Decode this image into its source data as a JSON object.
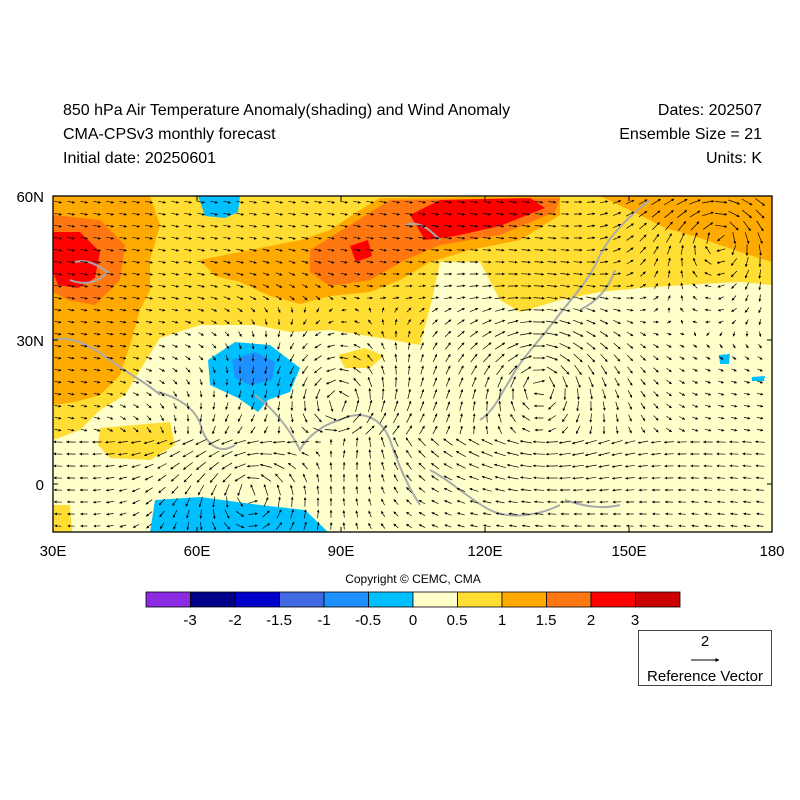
{
  "header": {
    "title": "850 hPa Air Temperature Anomaly(shading) and Wind Anomaly",
    "subtitle": "CMA-CPSv3 monthly forecast",
    "initial_date": "Initial date: 20250601",
    "dates": "Dates: 202507",
    "ensemble": "Ensemble Size = 21",
    "units": "Units: K"
  },
  "map": {
    "lon_range": [
      30,
      180
    ],
    "lat_range": [
      -10,
      60
    ],
    "lon_ticks": [
      "30E",
      "60E",
      "90E",
      "120E",
      "150E",
      "180"
    ],
    "lat_ticks": [
      "60N",
      "30N",
      "0"
    ],
    "coastline_color": "#aaaaaa",
    "vector_color": "#000000"
  },
  "colorbar": {
    "levels": [
      "-3",
      "-2",
      "-1.5",
      "-1",
      "-0.5",
      "0",
      "0.5",
      "1",
      "1.5",
      "2",
      "3"
    ],
    "colors": [
      "#8a2be2",
      "#00008b",
      "#0000cd",
      "#4169e1",
      "#1e90ff",
      "#00bfff",
      "#ffffcc",
      "#ffdd33",
      "#ffaa00",
      "#ff7711",
      "#ff0000",
      "#cc0000"
    ]
  },
  "copyright": "Copyright © CEMC, CMA",
  "reference_vector": {
    "magnitude": "2",
    "label": "Reference Vector"
  }
}
